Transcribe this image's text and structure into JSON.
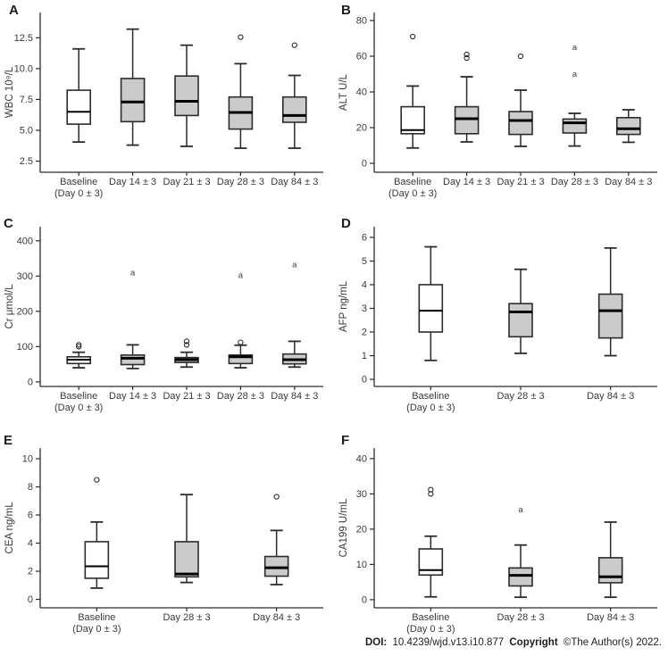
{
  "colors": {
    "box_fill": "#cbcbcb",
    "box_fill_baseline": "#ffffff",
    "stroke": "#2b2b2b",
    "median": "#000000",
    "text": "#3f3833",
    "letter": "#201c1a"
  },
  "footer": {
    "doi_label": "DOI:",
    "doi_value": "10.4239/wjd.v13.i10.877",
    "copyright_label": "Copyright",
    "copyright_value": "©The Author(s) 2022."
  },
  "chart_data": [
    {
      "type": "boxplot",
      "panel": "A",
      "ylabel": "WBC 10⁹/L",
      "ylim": [
        1.6,
        14.55
      ],
      "yticks": [
        {
          "v": 2.5,
          "label": "2.5"
        },
        {
          "v": 5.0,
          "label": "5.0"
        },
        {
          "v": 7.5,
          "label": "7.5"
        },
        {
          "v": 10.0,
          "label": "10.0"
        },
        {
          "v": 12.5,
          "label": "12.5"
        }
      ],
      "categories": [
        [
          "Baseline",
          "(Day 0 ± 3)"
        ],
        [
          "Day 14 ± 3"
        ],
        [
          "Day 21 ± 3"
        ],
        [
          "Day 28 ± 3"
        ],
        [
          "Day 84 ± 3"
        ]
      ],
      "boxes": [
        {
          "fill": "baseline",
          "whisker_low": 4.05,
          "q1": 5.5,
          "median": 6.5,
          "q3": 8.25,
          "whisker_high": 11.6,
          "outliers": []
        },
        {
          "fill": "gray",
          "whisker_low": 3.8,
          "q1": 5.7,
          "median": 7.3,
          "q3": 9.2,
          "whisker_high": 13.2,
          "outliers": []
        },
        {
          "fill": "gray",
          "whisker_low": 3.7,
          "q1": 6.2,
          "median": 7.35,
          "q3": 9.4,
          "whisker_high": 11.9,
          "outliers": []
        },
        {
          "fill": "gray",
          "whisker_low": 3.55,
          "q1": 5.1,
          "median": 6.45,
          "q3": 7.7,
          "whisker_high": 10.4,
          "outliers": [
            {
              "value": 12.55,
              "marker": "circle"
            }
          ]
        },
        {
          "fill": "gray",
          "whisker_low": 3.55,
          "q1": 5.65,
          "median": 6.2,
          "q3": 7.7,
          "whisker_high": 9.45,
          "outliers": [
            {
              "value": 11.9,
              "marker": "circle"
            }
          ]
        }
      ]
    },
    {
      "type": "boxplot",
      "panel": "B",
      "ylabel": "ALT U/L",
      "ylim": [
        -5,
        84.5
      ],
      "yticks": [
        {
          "v": 0,
          "label": "0"
        },
        {
          "v": 20,
          "label": "20"
        },
        {
          "v": 40,
          "label": "40"
        },
        {
          "v": 60,
          "label": "60"
        },
        {
          "v": 80,
          "label": "80"
        }
      ],
      "categories": [
        [
          "Baseline",
          "(Day 0 ± 3)"
        ],
        [
          "Day 14 ± 3"
        ],
        [
          "Day 21 ± 3"
        ],
        [
          "Day 28 ± 3"
        ],
        [
          "Day 84 ± 3"
        ]
      ],
      "boxes": [
        {
          "fill": "baseline",
          "whisker_low": 8.6,
          "q1": 16.6,
          "median": 18.6,
          "q3": 31.7,
          "whisker_high": 43.3,
          "outliers": [
            {
              "value": 71,
              "marker": "circle"
            }
          ]
        },
        {
          "fill": "gray",
          "whisker_low": 12,
          "q1": 16.6,
          "median": 25,
          "q3": 31.7,
          "whisker_high": 48.5,
          "outliers": [
            {
              "value": 59,
              "marker": "circle"
            },
            {
              "value": 61,
              "marker": "circle"
            }
          ]
        },
        {
          "fill": "gray",
          "whisker_low": 9.5,
          "q1": 16.2,
          "median": 24,
          "q3": 29,
          "whisker_high": 41,
          "outliers": [
            {
              "value": 60,
              "marker": "circle"
            }
          ]
        },
        {
          "fill": "gray",
          "whisker_low": 9.7,
          "q1": 17,
          "median": 22.7,
          "q3": 24.8,
          "whisker_high": 28,
          "outliers": [
            {
              "value": 50,
              "marker": "a"
            },
            {
              "value": 65,
              "marker": "a"
            }
          ]
        },
        {
          "fill": "gray",
          "whisker_low": 11.8,
          "q1": 16.2,
          "median": 19.4,
          "q3": 25.6,
          "whisker_high": 30,
          "outliers": []
        }
      ]
    },
    {
      "type": "boxplot",
      "panel": "C",
      "ylabel": "Cr μmol/L",
      "ylim": [
        -13,
        440
      ],
      "yticks": [
        {
          "v": 0,
          "label": "0"
        },
        {
          "v": 100,
          "label": "100"
        },
        {
          "v": 200,
          "label": "200"
        },
        {
          "v": 300,
          "label": "300"
        },
        {
          "v": 400,
          "label": "400"
        }
      ],
      "categories": [
        [
          "Baseline",
          "(Day 0 ± 3)"
        ],
        [
          "Day 14 ± 3"
        ],
        [
          "Day 21 ± 3"
        ],
        [
          "Day 28 ± 3"
        ],
        [
          "Day 84 ± 3"
        ]
      ],
      "boxes": [
        {
          "fill": "baseline",
          "whisker_low": 40,
          "q1": 52,
          "median": 63,
          "q3": 71,
          "whisker_high": 84,
          "outliers": [
            {
              "value": 100,
              "marker": "circle"
            },
            {
              "value": 105,
              "marker": "circle"
            }
          ]
        },
        {
          "fill": "gray",
          "whisker_low": 38,
          "q1": 49,
          "median": 67,
          "q3": 76,
          "whisker_high": 105,
          "outliers": [
            {
              "value": 310,
              "marker": "a"
            }
          ]
        },
        {
          "fill": "gray",
          "whisker_low": 42,
          "q1": 55,
          "median": 63,
          "q3": 69,
          "whisker_high": 84,
          "outliers": [
            {
              "value": 105,
              "marker": "circle"
            },
            {
              "value": 115,
              "marker": "circle"
            }
          ]
        },
        {
          "fill": "gray",
          "whisker_low": 40,
          "q1": 52,
          "median": 71,
          "q3": 76,
          "whisker_high": 104,
          "outliers": [
            {
              "value": 112,
              "marker": "circle"
            },
            {
              "value": 302,
              "marker": "a"
            }
          ]
        },
        {
          "fill": "gray",
          "whisker_low": 42,
          "q1": 51,
          "median": 63,
          "q3": 79,
          "whisker_high": 115,
          "outliers": [
            {
              "value": 333,
              "marker": "a"
            }
          ]
        }
      ]
    },
    {
      "type": "boxplot",
      "panel": "D",
      "ylabel": "AFP ng/mL",
      "ylim": [
        -0.3,
        6.45
      ],
      "yticks": [
        {
          "v": 0,
          "label": "0"
        },
        {
          "v": 1,
          "label": "1"
        },
        {
          "v": 2,
          "label": "2"
        },
        {
          "v": 3,
          "label": "3"
        },
        {
          "v": 4,
          "label": "4"
        },
        {
          "v": 5,
          "label": "5"
        },
        {
          "v": 6,
          "label": "6"
        }
      ],
      "categories": [
        [
          "Baseline",
          "(Day 0 ± 3)"
        ],
        [
          "Day 28 ± 3"
        ],
        [
          "Day 84 ± 3"
        ]
      ],
      "boxes": [
        {
          "fill": "baseline",
          "whisker_low": 0.8,
          "q1": 2.0,
          "median": 2.9,
          "q3": 4.0,
          "whisker_high": 5.6,
          "outliers": []
        },
        {
          "fill": "gray",
          "whisker_low": 1.1,
          "q1": 1.8,
          "median": 2.85,
          "q3": 3.2,
          "whisker_high": 4.65,
          "outliers": []
        },
        {
          "fill": "gray",
          "whisker_low": 1.0,
          "q1": 1.75,
          "median": 2.9,
          "q3": 3.6,
          "whisker_high": 5.55,
          "outliers": []
        }
      ]
    },
    {
      "type": "boxplot",
      "panel": "E",
      "ylabel": "CEA ng/mL",
      "ylim": [
        -0.6,
        10.76
      ],
      "yticks": [
        {
          "v": 0,
          "label": "0"
        },
        {
          "v": 2,
          "label": "2"
        },
        {
          "v": 4,
          "label": "4"
        },
        {
          "v": 6,
          "label": "6"
        },
        {
          "v": 8,
          "label": "8"
        },
        {
          "v": 10,
          "label": "10"
        }
      ],
      "categories": [
        [
          "Baseline",
          "(Day 0 ± 3)"
        ],
        [
          "Day 28 ± 3"
        ],
        [
          "Day 84 ± 3"
        ]
      ],
      "boxes": [
        {
          "fill": "baseline",
          "whisker_low": 0.8,
          "q1": 1.5,
          "median": 2.35,
          "q3": 4.1,
          "whisker_high": 5.5,
          "outliers": [
            {
              "value": 8.5,
              "marker": "circle"
            }
          ]
        },
        {
          "fill": "gray",
          "whisker_low": 1.2,
          "q1": 1.6,
          "median": 1.8,
          "q3": 4.1,
          "whisker_high": 7.45,
          "outliers": []
        },
        {
          "fill": "gray",
          "whisker_low": 1.05,
          "q1": 1.65,
          "median": 2.25,
          "q3": 3.05,
          "whisker_high": 4.9,
          "outliers": [
            {
              "value": 7.3,
              "marker": "circle"
            }
          ]
        }
      ]
    },
    {
      "type": "boxplot",
      "panel": "F",
      "ylabel": "CA199 U/mL",
      "ylim": [
        -2.3,
        43
      ],
      "yticks": [
        {
          "v": 0,
          "label": "0"
        },
        {
          "v": 10,
          "label": "10"
        },
        {
          "v": 20,
          "label": "20"
        },
        {
          "v": 30,
          "label": "30"
        },
        {
          "v": 40,
          "label": "40"
        }
      ],
      "categories": [
        [
          "Baseline",
          "(Day 0 ± 3)"
        ],
        [
          "Day 28 ± 3"
        ],
        [
          "Day 84 ± 3"
        ]
      ],
      "boxes": [
        {
          "fill": "baseline",
          "whisker_low": 0.8,
          "q1": 7.0,
          "median": 8.4,
          "q3": 14.4,
          "whisker_high": 18.0,
          "outliers": [
            {
              "value": 30,
              "marker": "circle"
            },
            {
              "value": 31.2,
              "marker": "circle"
            }
          ]
        },
        {
          "fill": "gray",
          "whisker_low": 0.7,
          "q1": 3.9,
          "median": 6.9,
          "q3": 9.0,
          "whisker_high": 15.5,
          "outliers": [
            {
              "value": 25.5,
              "marker": "a"
            }
          ]
        },
        {
          "fill": "gray",
          "whisker_low": 0.7,
          "q1": 4.8,
          "median": 6.5,
          "q3": 11.9,
          "whisker_high": 22.0,
          "outliers": []
        }
      ]
    }
  ]
}
